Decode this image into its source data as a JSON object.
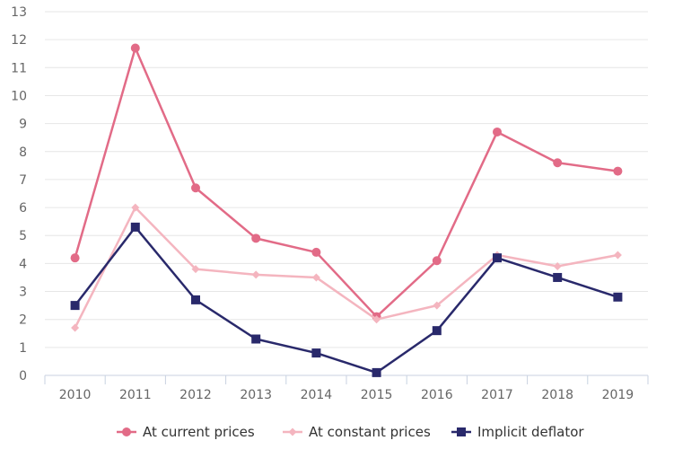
{
  "chart_data": {
    "type": "line",
    "title": "",
    "xlabel": "",
    "ylabel": "",
    "categories": [
      "2010",
      "2011",
      "2012",
      "2013",
      "2014",
      "2015",
      "2016",
      "2017",
      "2018",
      "2019"
    ],
    "ylim": [
      0,
      13
    ],
    "yticks": [
      "0",
      "1",
      "2",
      "3",
      "4",
      "5",
      "6",
      "7",
      "8",
      "9",
      "10",
      "11",
      "12",
      "13"
    ],
    "grid": true,
    "legend_position": "bottom",
    "series": [
      {
        "name": "At current prices",
        "color": "#e26b87",
        "marker": "circle",
        "values": [
          4.2,
          11.7,
          6.7,
          4.9,
          4.4,
          2.1,
          4.1,
          8.7,
          7.6,
          7.3
        ]
      },
      {
        "name": "At constant prices",
        "color": "#f4b5bf",
        "marker": "diamond",
        "values": [
          1.7,
          6.0,
          3.8,
          3.6,
          3.5,
          2.0,
          2.5,
          4.3,
          3.9,
          4.3
        ]
      },
      {
        "name": "Implicit deflator",
        "color": "#29296b",
        "marker": "square",
        "values": [
          2.5,
          5.3,
          2.7,
          1.3,
          0.8,
          0.1,
          1.6,
          4.2,
          3.5,
          2.8
        ]
      }
    ]
  }
}
